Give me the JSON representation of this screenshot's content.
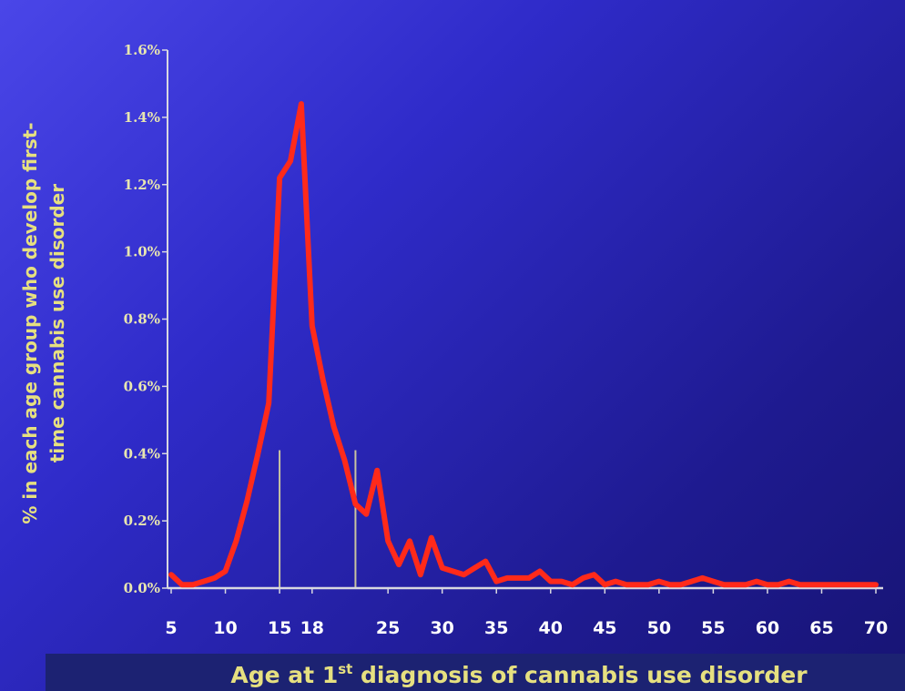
{
  "chart_data": {
    "type": "line",
    "title": "",
    "xlabel": "Age at 1st diagnosis of cannabis use disorder",
    "xlabel_parts": {
      "before": "Age at 1",
      "sup": "st",
      "after": " diagnosis of cannabis use disorder"
    },
    "ylabel_line1": "% in each age group who develop first-",
    "ylabel_line2": "time cannabis use disorder",
    "x_ticks": [
      "5",
      "10",
      "15",
      "18",
      "25",
      "30",
      "35",
      "40",
      "45",
      "50",
      "55",
      "60",
      "65",
      "70"
    ],
    "x_tick_values": [
      5,
      10,
      15,
      18,
      25,
      30,
      35,
      40,
      45,
      50,
      55,
      60,
      65,
      70
    ],
    "y_ticks": [
      "0.0%",
      "0.2%",
      "0.4%",
      "0.6%",
      "0.8%",
      "1.0%",
      "1.2%",
      "1.4%",
      "1.6%"
    ],
    "y_tick_values": [
      0,
      0.2,
      0.4,
      0.6,
      0.8,
      1.0,
      1.2,
      1.4,
      1.6
    ],
    "xlim": [
      5,
      70
    ],
    "ylim": [
      0,
      1.6
    ],
    "reference_lines_x": [
      15,
      22
    ],
    "series": [
      {
        "color": "#ff2a1a",
        "x": [
          5,
          6,
          7,
          8,
          9,
          10,
          11,
          12,
          13,
          14,
          15,
          16,
          17,
          18,
          19,
          20,
          21,
          22,
          23,
          24,
          25,
          26,
          27,
          28,
          29,
          30,
          31,
          32,
          33,
          34,
          35,
          36,
          37,
          38,
          39,
          40,
          41,
          42,
          43,
          44,
          45,
          46,
          47,
          48,
          49,
          50,
          51,
          52,
          53,
          54,
          55,
          56,
          57,
          58,
          59,
          60,
          61,
          62,
          63,
          64,
          65,
          66,
          67,
          68,
          69,
          70
        ],
        "y": [
          0.04,
          0.01,
          0.01,
          0.02,
          0.03,
          0.05,
          0.14,
          0.26,
          0.4,
          0.55,
          1.22,
          1.27,
          1.44,
          0.78,
          0.62,
          0.48,
          0.38,
          0.25,
          0.22,
          0.35,
          0.14,
          0.07,
          0.14,
          0.04,
          0.15,
          0.06,
          0.05,
          0.04,
          0.06,
          0.08,
          0.02,
          0.03,
          0.03,
          0.03,
          0.05,
          0.02,
          0.02,
          0.01,
          0.03,
          0.04,
          0.01,
          0.02,
          0.01,
          0.01,
          0.01,
          0.02,
          0.01,
          0.01,
          0.02,
          0.03,
          0.02,
          0.01,
          0.01,
          0.01,
          0.02,
          0.01,
          0.01,
          0.02,
          0.01,
          0.01,
          0.01,
          0.01,
          0.01,
          0.01,
          0.01,
          0.01
        ]
      }
    ],
    "grid": false,
    "legend": "none"
  },
  "colors": {
    "line": "#ff2a1a",
    "axis": "#d8d8e0",
    "reference_line": "#c9c4a0",
    "y_tick_label": "#e8e6b0",
    "x_tick_label": "#ffffff",
    "axis_title": "#e6e080"
  }
}
